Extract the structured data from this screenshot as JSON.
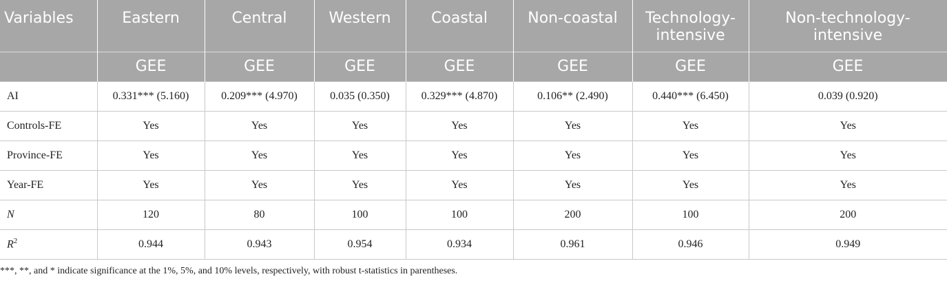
{
  "table": {
    "columns": [
      "Variables",
      "Eastern",
      "Central",
      "Western",
      "Coastal",
      "Non-coastal",
      "Technology-intensive",
      "Non-technology-intensive"
    ],
    "subheaders": [
      "GEE",
      "GEE",
      "GEE",
      "GEE",
      "GEE",
      "GEE",
      "GEE"
    ],
    "rows": [
      {
        "label": "AI",
        "cells": [
          "0.331*** (5.160)",
          "0.209*** (4.970)",
          "0.035 (0.350)",
          "0.329*** (4.870)",
          "0.106** (2.490)",
          "0.440*** (6.450)",
          "0.039 (0.920)"
        ]
      },
      {
        "label": "Controls-FE",
        "cells": [
          "Yes",
          "Yes",
          "Yes",
          "Yes",
          "Yes",
          "Yes",
          "Yes"
        ]
      },
      {
        "label": "Province-FE",
        "cells": [
          "Yes",
          "Yes",
          "Yes",
          "Yes",
          "Yes",
          "Yes",
          "Yes"
        ]
      },
      {
        "label": "Year-FE",
        "cells": [
          "Yes",
          "Yes",
          "Yes",
          "Yes",
          "Yes",
          "Yes",
          "Yes"
        ]
      },
      {
        "label": "N",
        "italic": true,
        "cells": [
          120,
          80,
          100,
          100,
          200,
          100,
          200
        ]
      },
      {
        "label": "R",
        "label_sup": "2",
        "italic": true,
        "cells": [
          0.944,
          0.943,
          0.954,
          0.934,
          0.961,
          0.946,
          0.949
        ]
      }
    ],
    "footnote": "***, **, and * indicate significance at the 1%, 5%, and 10% levels, respectively, with robust t-statistics in parentheses."
  }
}
